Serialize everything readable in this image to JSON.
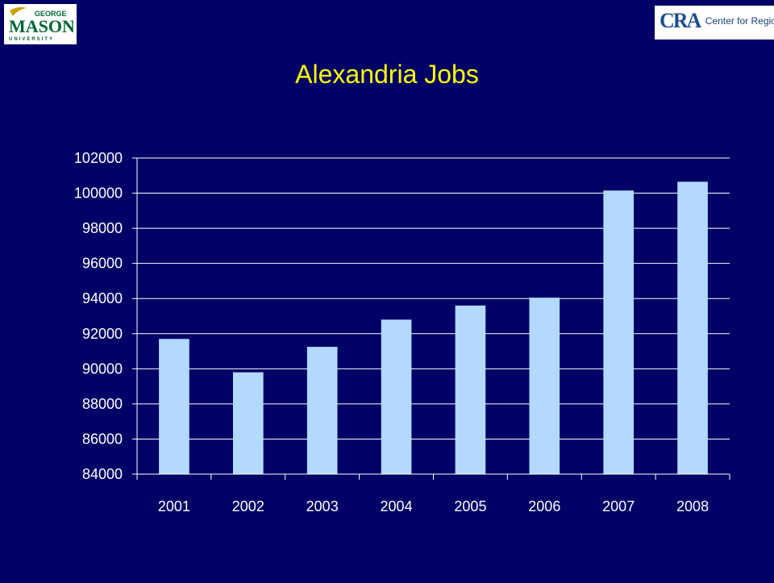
{
  "logos": {
    "left_brand": "MASON",
    "left_top": "GEORGE",
    "left_bottom": "UNIVERSITY",
    "right_mark": "CRA",
    "right_text": "Center for Regional Analysis"
  },
  "colors": {
    "background": "#000066",
    "title": "#ffff00",
    "bar": "#b3d9ff",
    "axis_text": "#ffffff",
    "gridline": "#ffffff"
  },
  "chart_data": {
    "type": "bar",
    "title": "Alexandria Jobs",
    "categories": [
      "2001",
      "2002",
      "2003",
      "2004",
      "2005",
      "2006",
      "2007",
      "2008"
    ],
    "values": [
      91700,
      89800,
      91250,
      92800,
      93600,
      94050,
      100150,
      100650
    ],
    "ylim": [
      84000,
      102000
    ],
    "yticks": [
      "84000",
      "86000",
      "88000",
      "90000",
      "92000",
      "94000",
      "96000",
      "98000",
      "100000",
      "102000"
    ],
    "xlabel": "",
    "ylabel": "",
    "grid": true,
    "legend": "none"
  }
}
